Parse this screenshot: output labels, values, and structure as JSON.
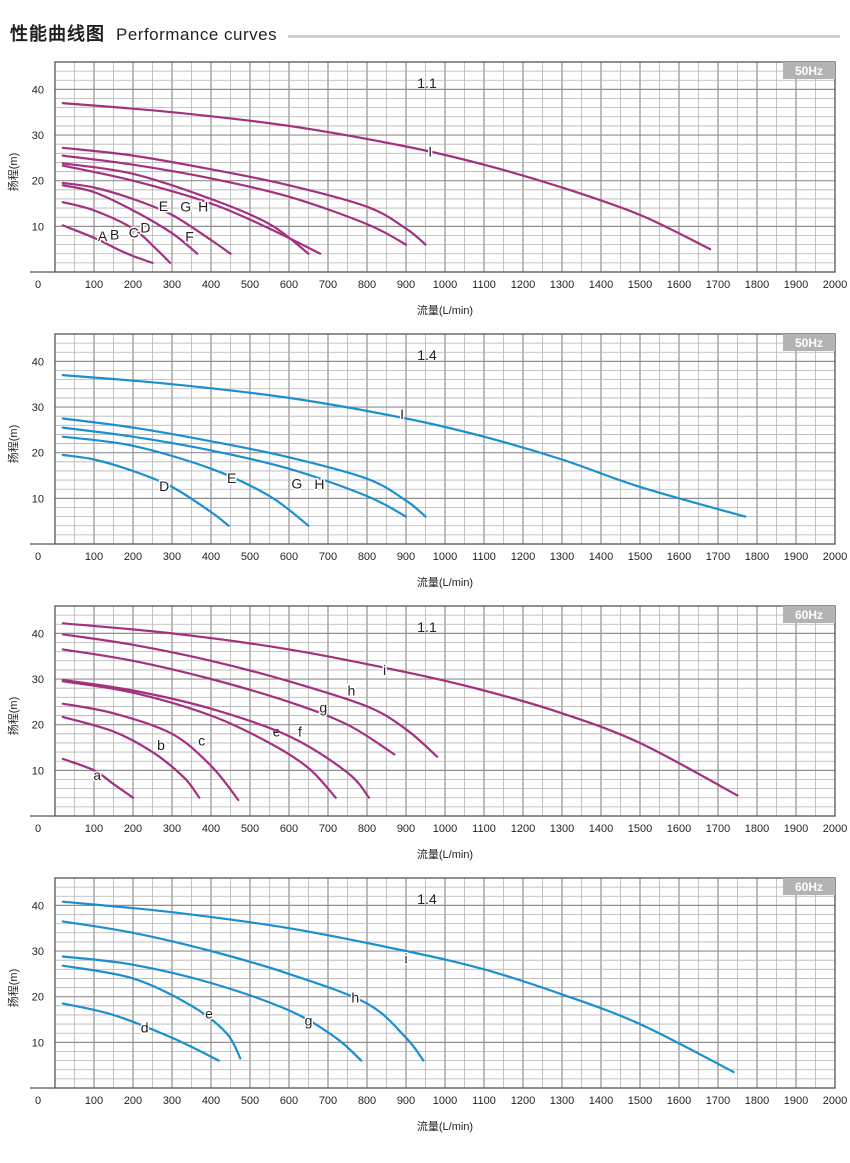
{
  "header": {
    "title_zh": "性能曲线图",
    "title_en": "Performance curves"
  },
  "chart_data": [
    {
      "type": "line",
      "title": "1.1",
      "freq_badge": "50Hz",
      "xlabel": "流量(L/min)",
      "ylabel": "扬程(m)",
      "xlim": [
        0,
        2000
      ],
      "ylim": [
        0,
        46
      ],
      "xticks": [
        0,
        100,
        200,
        300,
        400,
        500,
        600,
        700,
        800,
        900,
        1000,
        1100,
        1200,
        1300,
        1400,
        1500,
        1600,
        1700,
        1800,
        1900,
        2000
      ],
      "yticks": [
        10,
        20,
        30,
        40
      ],
      "color": "#a3317f",
      "series": [
        {
          "name": "A",
          "x": [
            20,
            100,
            160,
            200,
            250
          ],
          "y": [
            10.2,
            7.5,
            5,
            3.5,
            2
          ],
          "label_x": 122,
          "label_y": 7.9
        },
        {
          "name": "B",
          "x": [
            20,
            100,
            200,
            260,
            295
          ],
          "y": [
            15.3,
            13.5,
            9.5,
            5,
            2
          ],
          "label_x": 153,
          "label_y": 8.2
        },
        {
          "name": "C",
          "x": [
            20,
            100,
            200,
            300,
            365
          ],
          "y": [
            19,
            17.5,
            13.5,
            8.5,
            4
          ],
          "label_x": 202,
          "label_y": 8.6
        },
        {
          "name": "D",
          "x": [
            20,
            100,
            200,
            300,
            400,
            450
          ],
          "y": [
            19.5,
            18.5,
            16,
            12.5,
            7,
            4
          ],
          "label_x": 232,
          "label_y": 9.7
        },
        {
          "name": "E",
          "x": [
            20,
            200,
            400,
            550,
            650
          ],
          "y": [
            23.8,
            21.5,
            16,
            10.5,
            4
          ],
          "label_x": 278,
          "label_y": 14.5
        },
        {
          "name": "F",
          "x": [
            20,
            200,
            400,
            550,
            680
          ],
          "y": [
            23.3,
            20,
            15,
            9.5,
            4
          ],
          "label_x": 345,
          "label_y": 7.8
        },
        {
          "name": "G",
          "x": [
            20,
            200,
            400,
            600,
            800,
            900
          ],
          "y": [
            25.5,
            23.5,
            20.5,
            16.5,
            10.5,
            6
          ],
          "label_x": 335,
          "label_y": 14.4
        },
        {
          "name": "H",
          "x": [
            20,
            200,
            400,
            600,
            800,
            900,
            950
          ],
          "y": [
            27.2,
            25.5,
            22.5,
            19,
            14.3,
            9.5,
            6
          ],
          "label_x": 380,
          "label_y": 14.3
        },
        {
          "name": "I",
          "x": [
            20,
            300,
            600,
            900,
            1100,
            1300,
            1500,
            1680
          ],
          "y": [
            37,
            35,
            32,
            27.5,
            23.5,
            18.5,
            12.5,
            5
          ],
          "label_x": 962,
          "label_y": 26.4
        }
      ]
    },
    {
      "type": "line",
      "title": "1.4",
      "freq_badge": "50Hz",
      "xlabel": "流量(L/min)",
      "ylabel": "扬程(m)",
      "xlim": [
        0,
        2000
      ],
      "ylim": [
        0,
        46
      ],
      "xticks": [
        0,
        100,
        200,
        300,
        400,
        500,
        600,
        700,
        800,
        900,
        1000,
        1100,
        1200,
        1300,
        1400,
        1500,
        1600,
        1700,
        1800,
        1900,
        2000
      ],
      "yticks": [
        10,
        20,
        30,
        40
      ],
      "color": "#1b8fcf",
      "series": [
        {
          "name": "D",
          "x": [
            20,
            100,
            200,
            300,
            400,
            445
          ],
          "y": [
            19.5,
            18.5,
            16,
            12.5,
            7,
            4
          ],
          "label_x": 280,
          "label_y": 12.7
        },
        {
          "name": "E",
          "x": [
            20,
            200,
            400,
            550,
            650
          ],
          "y": [
            23.5,
            21.5,
            16.5,
            10.5,
            4
          ],
          "label_x": 453,
          "label_y": 14.5
        },
        {
          "name": "G",
          "x": [
            20,
            200,
            400,
            600,
            800,
            900
          ],
          "y": [
            25.5,
            23.5,
            20.5,
            16.5,
            10.5,
            6
          ],
          "label_x": 620,
          "label_y": 13.2
        },
        {
          "name": "H",
          "x": [
            20,
            200,
            400,
            600,
            800,
            900,
            950
          ],
          "y": [
            27.5,
            25.5,
            22.5,
            19,
            14.3,
            9.5,
            6
          ],
          "label_x": 678,
          "label_y": 13.1
        },
        {
          "name": "I",
          "x": [
            20,
            300,
            600,
            900,
            1100,
            1300,
            1500,
            1770
          ],
          "y": [
            37,
            35,
            32,
            27.5,
            23.5,
            18.5,
            12.5,
            6
          ],
          "label_x": 890,
          "label_y": 28.5
        }
      ]
    },
    {
      "type": "line",
      "title": "1.1",
      "freq_badge": "60Hz",
      "xlabel": "流量(L/min)",
      "ylabel": "扬程(m)",
      "xlim": [
        0,
        2000
      ],
      "ylim": [
        0,
        46
      ],
      "xticks": [
        0,
        100,
        200,
        300,
        400,
        500,
        600,
        700,
        800,
        900,
        1000,
        1100,
        1200,
        1300,
        1400,
        1500,
        1600,
        1700,
        1800,
        1900,
        2000
      ],
      "yticks": [
        10,
        20,
        30,
        40
      ],
      "color": "#a3317f",
      "series": [
        {
          "name": "a",
          "x": [
            20,
            100,
            150,
            200
          ],
          "y": [
            12.5,
            10,
            7,
            4
          ],
          "label_x": 108,
          "label_y": 9
        },
        {
          "name": "b",
          "x": [
            20,
            150,
            250,
            330,
            370
          ],
          "y": [
            21.7,
            18.5,
            14,
            8.5,
            4
          ],
          "label_x": 272,
          "label_y": 15.5
        },
        {
          "name": "c",
          "x": [
            20,
            150,
            300,
            400,
            470
          ],
          "y": [
            24.6,
            22.5,
            18,
            11,
            3.5
          ],
          "label_x": 376,
          "label_y": 16.5
        },
        {
          "name": "e",
          "x": [
            20,
            200,
            400,
            550,
            650,
            720
          ],
          "y": [
            29.5,
            27,
            22,
            16,
            10.5,
            4
          ],
          "label_x": 568,
          "label_y": 18.5
        },
        {
          "name": "f",
          "x": [
            20,
            200,
            400,
            600,
            750,
            805
          ],
          "y": [
            29.8,
            27.5,
            23.5,
            17.5,
            9.5,
            4
          ],
          "label_x": 628,
          "label_y": 18.5
        },
        {
          "name": "g",
          "x": [
            20,
            200,
            400,
            600,
            750,
            870
          ],
          "y": [
            36.5,
            34,
            30,
            25,
            20,
            13.5
          ],
          "label_x": 688,
          "label_y": 23.8
        },
        {
          "name": "h",
          "x": [
            20,
            200,
            400,
            600,
            800,
            900,
            980
          ],
          "y": [
            39.8,
            37.5,
            34,
            29.5,
            24,
            19,
            13
          ],
          "label_x": 760,
          "label_y": 27.5
        },
        {
          "name": "i",
          "x": [
            20,
            300,
            600,
            900,
            1100,
            1300,
            1500,
            1750
          ],
          "y": [
            42.2,
            40,
            36.5,
            31.5,
            27.5,
            22.5,
            16,
            4.5
          ],
          "label_x": 845,
          "label_y": 32
        }
      ]
    },
    {
      "type": "line",
      "title": "1.4",
      "freq_badge": "60Hz",
      "xlabel": "流量(L/min)",
      "ylabel": "扬程(m)",
      "xlim": [
        0,
        2000
      ],
      "ylim": [
        0,
        46
      ],
      "xticks": [
        0,
        100,
        200,
        300,
        400,
        500,
        600,
        700,
        800,
        900,
        1000,
        1100,
        1200,
        1300,
        1400,
        1500,
        1600,
        1700,
        1800,
        1900,
        2000
      ],
      "yticks": [
        10,
        20,
        30,
        40
      ],
      "color": "#1b8fcf",
      "series": [
        {
          "name": "d",
          "x": [
            20,
            150,
            300,
            420
          ],
          "y": [
            18.5,
            16,
            11,
            6
          ],
          "label_x": 230,
          "label_y": 13.2
        },
        {
          "name": "e",
          "x": [
            20,
            200,
            350,
            440,
            475
          ],
          "y": [
            26.8,
            24,
            18,
            12,
            6.5
          ],
          "label_x": 395,
          "label_y": 16.3
        },
        {
          "name": "g",
          "x": [
            20,
            200,
            400,
            600,
            720,
            785
          ],
          "y": [
            28.8,
            27,
            23,
            17,
            11,
            6
          ],
          "label_x": 650,
          "label_y": 14.8
        },
        {
          "name": "h",
          "x": [
            20,
            200,
            400,
            600,
            800,
            900,
            945
          ],
          "y": [
            36.5,
            34,
            30,
            25,
            18.5,
            11,
            6
          ],
          "label_x": 770,
          "label_y": 19.8
        },
        {
          "name": "i",
          "x": [
            20,
            300,
            600,
            900,
            1100,
            1300,
            1500,
            1740
          ],
          "y": [
            40.8,
            38.5,
            35,
            30,
            26,
            20.5,
            14,
            3.5
          ],
          "label_x": 900,
          "label_y": 28.4
        }
      ]
    }
  ]
}
